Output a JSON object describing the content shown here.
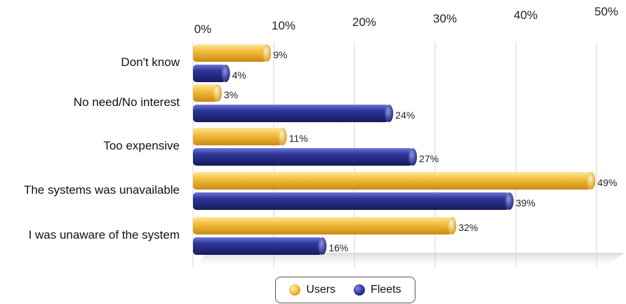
{
  "chart_data": {
    "type": "bar",
    "orientation": "horizontal",
    "title": "",
    "xlabel": "",
    "ylabel": "",
    "xlim": [
      0,
      50
    ],
    "x_ticks": [
      "0%",
      "10%",
      "20%",
      "30%",
      "40%",
      "50%"
    ],
    "categories": [
      "Don't know",
      "No need/No interest",
      "Too expensive",
      "The systems was unavailable",
      "I was unaware of the system"
    ],
    "series": [
      {
        "name": "Users",
        "color": "#F2B42A",
        "values": [
          9,
          3,
          11,
          49,
          32
        ],
        "labels": [
          "9%",
          "3%",
          "11%",
          "49%",
          "32%"
        ]
      },
      {
        "name": "Fleets",
        "color": "#2B3398",
        "values": [
          4,
          24,
          27,
          39,
          16
        ],
        "labels": [
          "4%",
          "24%",
          "27%",
          "39%",
          "16%"
        ]
      }
    ],
    "grid": true,
    "legend": "bottom"
  }
}
